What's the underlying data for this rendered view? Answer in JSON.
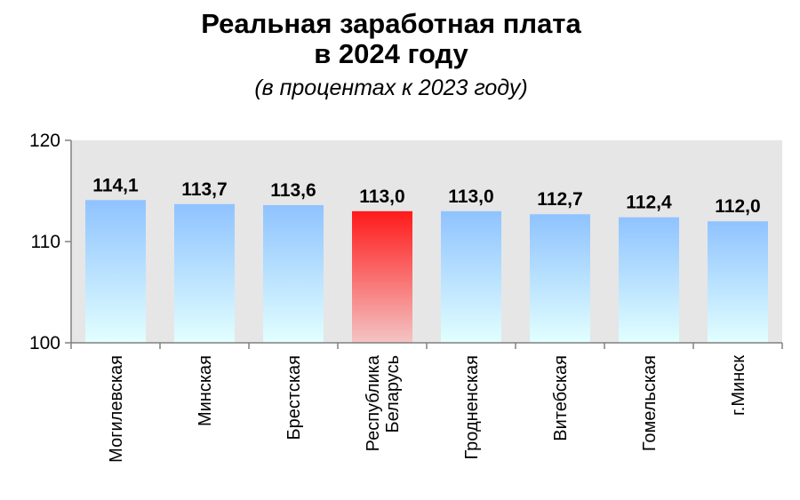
{
  "chart_data": {
    "type": "bar",
    "title_line1": "Реальная заработная плата",
    "title_line2": "в 2024 году",
    "subtitle": "(в процентах к 2023 году)",
    "categories": [
      [
        "Могилевская"
      ],
      [
        "Минская"
      ],
      [
        "Брестская"
      ],
      [
        "Республика",
        "Беларусь"
      ],
      [
        "Гродненская"
      ],
      [
        "Витебская"
      ],
      [
        "Гомельская"
      ],
      [
        "г.Минск"
      ]
    ],
    "values": [
      114.1,
      113.7,
      113.6,
      113.0,
      113.0,
      112.7,
      112.4,
      112.0
    ],
    "value_labels": [
      "114,1",
      "113,7",
      "113,6",
      "113,0",
      "113,0",
      "112,7",
      "112,4",
      "112,0"
    ],
    "highlight_index": 3,
    "ylim": [
      100,
      120
    ],
    "yticks": [
      100,
      110,
      120
    ],
    "grid": false,
    "colors": {
      "plot_background": "#e6e6e6",
      "bar_top": "#8fc3ff",
      "bar_bottom": "#e2ffff",
      "highlight_top": "#ff1a1a",
      "highlight_bottom": "#f4c4c4",
      "axis": "#808080"
    }
  }
}
